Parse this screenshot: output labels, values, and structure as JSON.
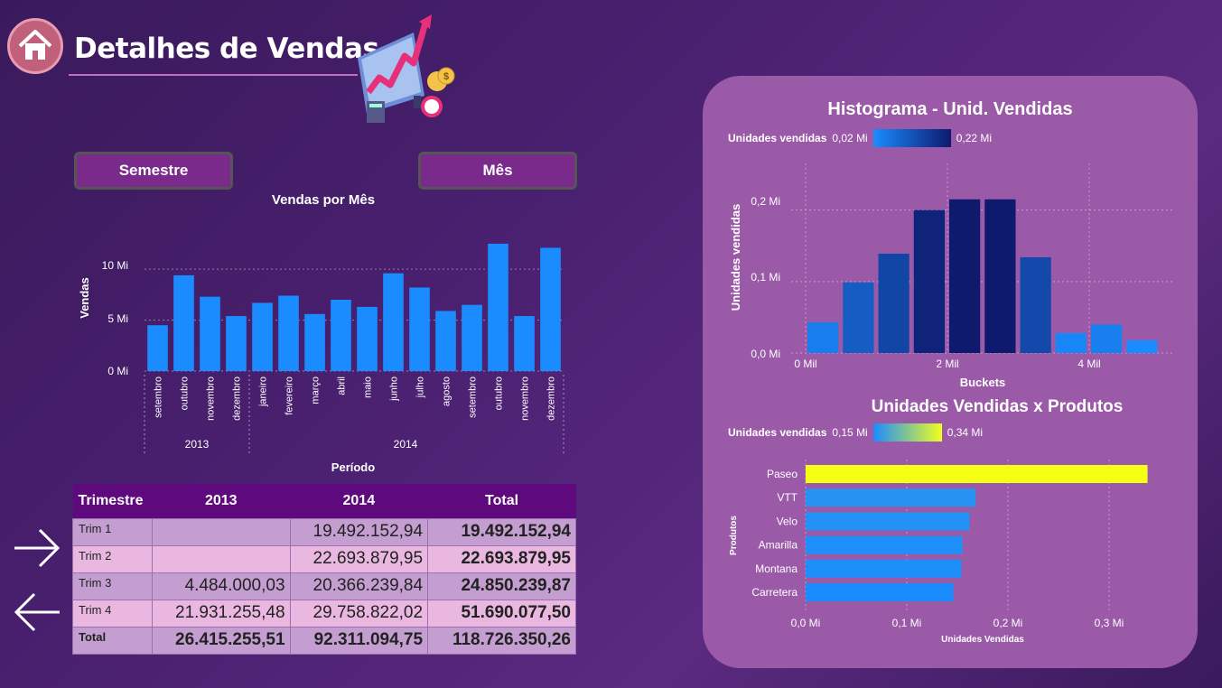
{
  "header": {
    "title": "Detalhes de Vendas",
    "home_icon": "home-icon"
  },
  "buttons": {
    "semestre": "Semestre",
    "mes": "Mês"
  },
  "bar_chart": {
    "title": "Vendas por Mês",
    "xlabel": "Período",
    "ylabel": "Vendas",
    "ytick_labels": [
      "0 Mi",
      "5 Mi",
      "10 Mi"
    ],
    "year_labels": [
      "2013",
      "2014"
    ],
    "bar_color": "#1a8cff"
  },
  "table": {
    "headers": [
      "Trimestre",
      "2013",
      "2014",
      "Total"
    ],
    "rows": [
      {
        "label": "Trim 1",
        "y2013": "",
        "y2014": "19.492.152,94",
        "total": "19.492.152,94"
      },
      {
        "label": "Trim 2",
        "y2013": "",
        "y2014": "22.693.879,95",
        "total": "22.693.879,95"
      },
      {
        "label": "Trim 3",
        "y2013": "4.484.000,03",
        "y2014": "20.366.239,84",
        "total": "24.850.239,87"
      },
      {
        "label": "Trim 4",
        "y2013": "21.931.255,48",
        "y2014": "29.758.822,02",
        "total": "51.690.077,50"
      }
    ],
    "total": {
      "label": "Total",
      "y2013": "26.415.255,51",
      "y2014": "92.311.094,75",
      "total": "118.726.350,26"
    }
  },
  "nav": {
    "next_icon": "arrow-right-icon",
    "prev_icon": "arrow-left-icon"
  },
  "histogram": {
    "title": "Histograma - Unid. Vendidas",
    "legend_label": "Unidades vendidas",
    "legend_min": "0,02 Mi",
    "legend_max": "0,22 Mi",
    "xlabel": "Buckets",
    "ylabel": "Unidades vendidas",
    "ytick_labels": [
      "0,0 Mi",
      "0,1 Mi",
      "0,2 Mi"
    ],
    "xtick_labels": [
      "0 Mil",
      "2 Mil",
      "4 Mil"
    ]
  },
  "hbar": {
    "title": "Unidades Vendidas x Produtos",
    "legend_label": "Unidades vendidas",
    "legend_min": "0,15 Mi",
    "legend_max": "0,34 Mi",
    "xlabel": "Unidades Vendidas",
    "ylabel": "Produtos",
    "xtick_labels": [
      "0,0 Mi",
      "0,1 Mi",
      "0,2 Mi",
      "0,3 Mi"
    ]
  },
  "chart_data": [
    {
      "type": "bar",
      "title": "Vendas por Mês",
      "xlabel": "Período",
      "ylabel": "Vendas",
      "categories": [
        "setembro",
        "outubro",
        "novembro",
        "dezembro",
        "janeiro",
        "fevereiro",
        "março",
        "abril",
        "maio",
        "junho",
        "julho",
        "agosto",
        "setembro",
        "outubro",
        "novembro",
        "dezembro"
      ],
      "groups": [
        {
          "name": "2013",
          "count": 4
        },
        {
          "name": "2014",
          "count": 12
        }
      ],
      "values": [
        4.5,
        9.4,
        7.3,
        5.4,
        6.7,
        7.4,
        5.6,
        7.0,
        6.3,
        9.6,
        8.2,
        5.9,
        6.5,
        12.5,
        5.4,
        12.1
      ],
      "unit": "Mi",
      "ylim": [
        0,
        14
      ],
      "yticks": [
        0,
        5,
        10
      ]
    },
    {
      "type": "bar",
      "title": "Histograma - Unid. Vendidas",
      "xlabel": "Buckets",
      "ylabel": "Unidades vendidas",
      "x": [
        0,
        500,
        1000,
        1500,
        2000,
        2500,
        3000,
        3500,
        4000,
        4500
      ],
      "values": [
        0.043,
        0.099,
        0.139,
        0.2,
        0.215,
        0.215,
        0.134,
        0.028,
        0.04,
        0.018
      ],
      "unit": "Mi",
      "xlim": [
        0,
        5000
      ],
      "ylim": [
        0,
        0.24
      ],
      "yticks": [
        0,
        0.1,
        0.2
      ],
      "xticks": [
        0,
        2000,
        4000
      ]
    },
    {
      "type": "bar",
      "orientation": "horizontal",
      "title": "Unidades Vendidas x Produtos",
      "xlabel": "Unidades Vendidas",
      "ylabel": "Produtos",
      "categories": [
        "Paseo",
        "VTT",
        "Velo",
        "Amarilla",
        "Montana",
        "Carretera"
      ],
      "values": [
        0.338,
        0.168,
        0.162,
        0.155,
        0.154,
        0.146
      ],
      "unit": "Mi",
      "xlim": [
        0,
        0.35
      ],
      "xticks": [
        0,
        0.1,
        0.2,
        0.3
      ]
    }
  ]
}
